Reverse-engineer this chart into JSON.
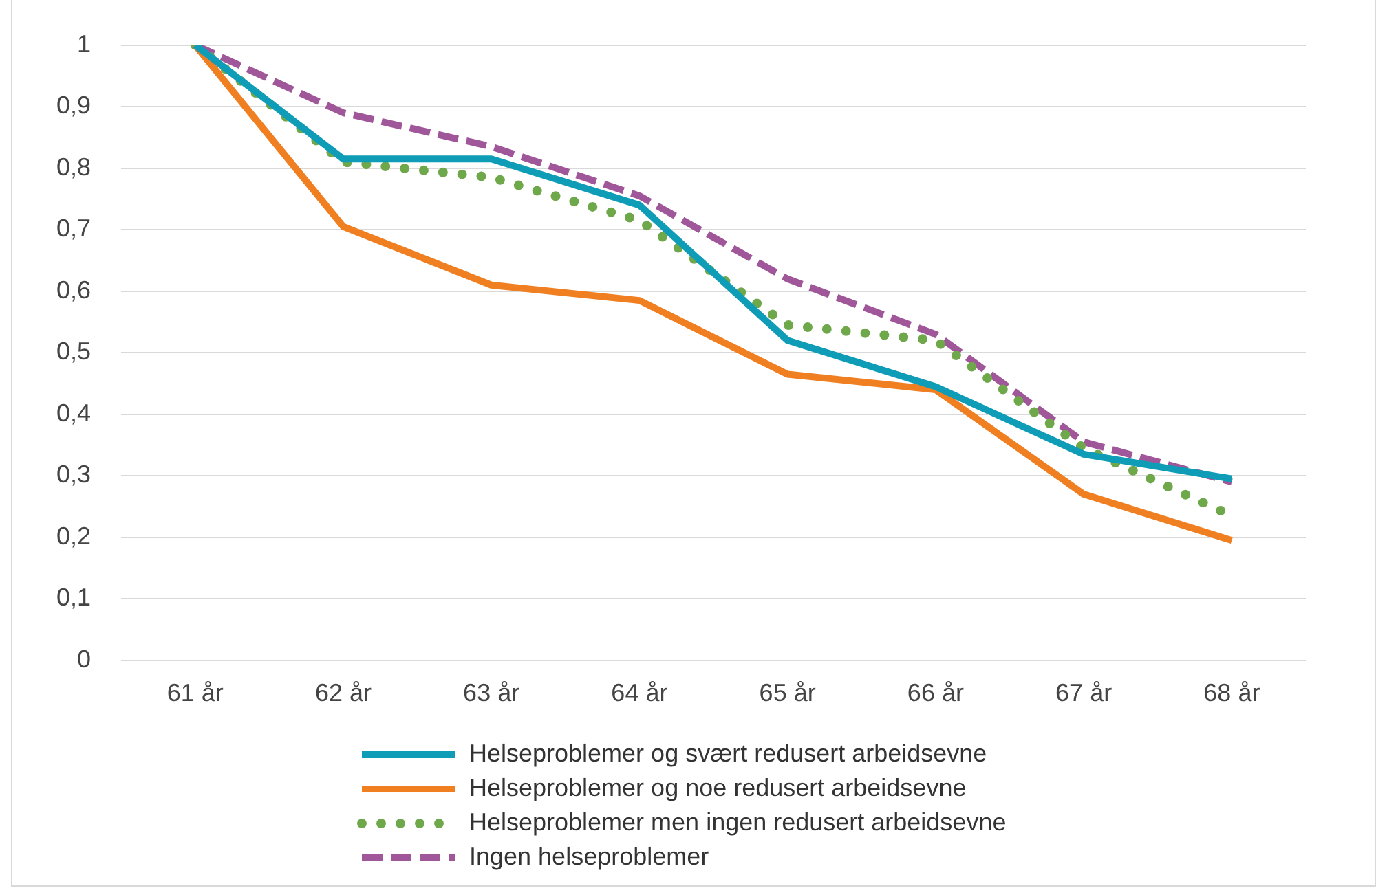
{
  "chart_data": {
    "type": "line",
    "categories": [
      "61 år",
      "62 år",
      "63 år",
      "64 år",
      "65 år",
      "66 år",
      "67 år",
      "68 år"
    ],
    "ylim": [
      0,
      1
    ],
    "yticks": [
      0,
      {
        "value": 0.1,
        "label": "0,1"
      },
      {
        "value": 0.2,
        "label": "0,2"
      },
      {
        "value": 0.3,
        "label": "0,3"
      },
      {
        "value": 0.4,
        "label": "0,4"
      },
      {
        "value": 0.5,
        "label": "0,5"
      },
      {
        "value": 0.6,
        "label": "0,6"
      },
      {
        "value": 0.7,
        "label": "0,7"
      },
      {
        "value": 0.8,
        "label": "0,8"
      },
      {
        "value": 0.9,
        "label": "0,9"
      },
      1
    ],
    "grid": "y",
    "legend": "bottom",
    "marker": "none",
    "series": [
      {
        "name": "Helseproblemer og svært redusert arbeidsevne",
        "color": "#0e9cb6",
        "line_style": "solid",
        "values": [
          1,
          0.815,
          0.815,
          0.74,
          0.52,
          0.445,
          0.335,
          0.295
        ]
      },
      {
        "name": "Helseproblemer og noe redusert arbeidsevne",
        "color": "#f07f22",
        "line_style": "solid",
        "values": [
          1,
          0.705,
          0.61,
          0.585,
          0.465,
          0.44,
          0.27,
          0.195
        ]
      },
      {
        "name": "Helseproblemer men ingen redusert arbeidsevne",
        "color": "#6fa84b",
        "line_style": "dotted",
        "values": [
          1,
          0.81,
          0.785,
          0.715,
          0.545,
          0.52,
          0.345,
          0.235
        ]
      },
      {
        "name": "Ingen helseproblemer",
        "color": "#a0579a",
        "line_style": "dashed",
        "values": [
          1,
          0.89,
          0.835,
          0.755,
          0.62,
          0.53,
          0.355,
          0.29
        ]
      }
    ]
  }
}
